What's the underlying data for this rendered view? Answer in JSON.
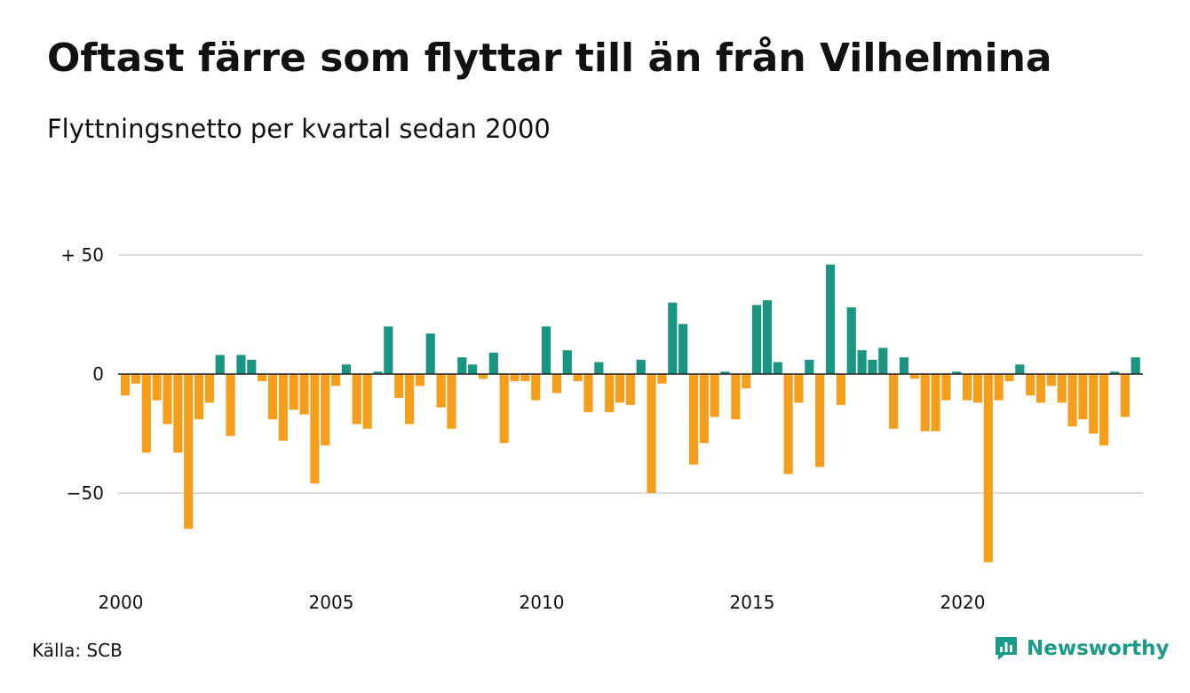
{
  "title": "Oftast färre som flyttar till än från Vilhelmina",
  "subtitle": "Flyttningsnetto per kvartal sedan 2000",
  "source": "Källa: SCB",
  "brand": {
    "name": "Newsworthy",
    "icon": "newsworthy-logo-icon",
    "color": "#1a9b8a"
  },
  "chart_data": {
    "type": "bar",
    "title": "Oftast färre som flyttar till än från Vilhelmina",
    "subtitle": "Flyttningsnetto per kvartal sedan 2000",
    "xlabel": "",
    "ylabel": "",
    "ylim": [
      -82,
      52
    ],
    "y_ticks": [
      {
        "value": 50,
        "label": "+ 50"
      },
      {
        "value": 0,
        "label": "0"
      },
      {
        "value": -50,
        "label": "−50"
      }
    ],
    "x_ticks": [
      "2000",
      "2005",
      "2010",
      "2015",
      "2020"
    ],
    "grid": true,
    "positive_color": "#1a9582",
    "negative_color": "#f59e1c",
    "start": "2000 Q1",
    "interval": "quarter",
    "values": [
      -9,
      -4,
      -33,
      -11,
      -21,
      -33,
      -65,
      -19,
      -12,
      8,
      -26,
      8,
      6,
      -3,
      -19,
      -28,
      -15,
      -17,
      -46,
      -30,
      -5,
      4,
      -21,
      -23,
      1,
      20,
      -10,
      -21,
      -5,
      17,
      -14,
      -23,
      7,
      4,
      -2,
      9,
      -29,
      -3,
      -3,
      -11,
      20,
      -8,
      10,
      -3,
      -16,
      5,
      -16,
      -12,
      -13,
      6,
      -50,
      -4,
      30,
      21,
      -38,
      -29,
      -18,
      1,
      -19,
      -6,
      29,
      31,
      5,
      -42,
      -12,
      6,
      -39,
      46,
      -13,
      28,
      10,
      6,
      11,
      -23,
      7,
      -2,
      -24,
      -24,
      -11,
      1,
      -11,
      -12,
      -79,
      -11,
      -3,
      4,
      -9,
      -12,
      -5,
      -12,
      -22,
      -19,
      -25,
      -30,
      1,
      -18,
      7
    ]
  }
}
